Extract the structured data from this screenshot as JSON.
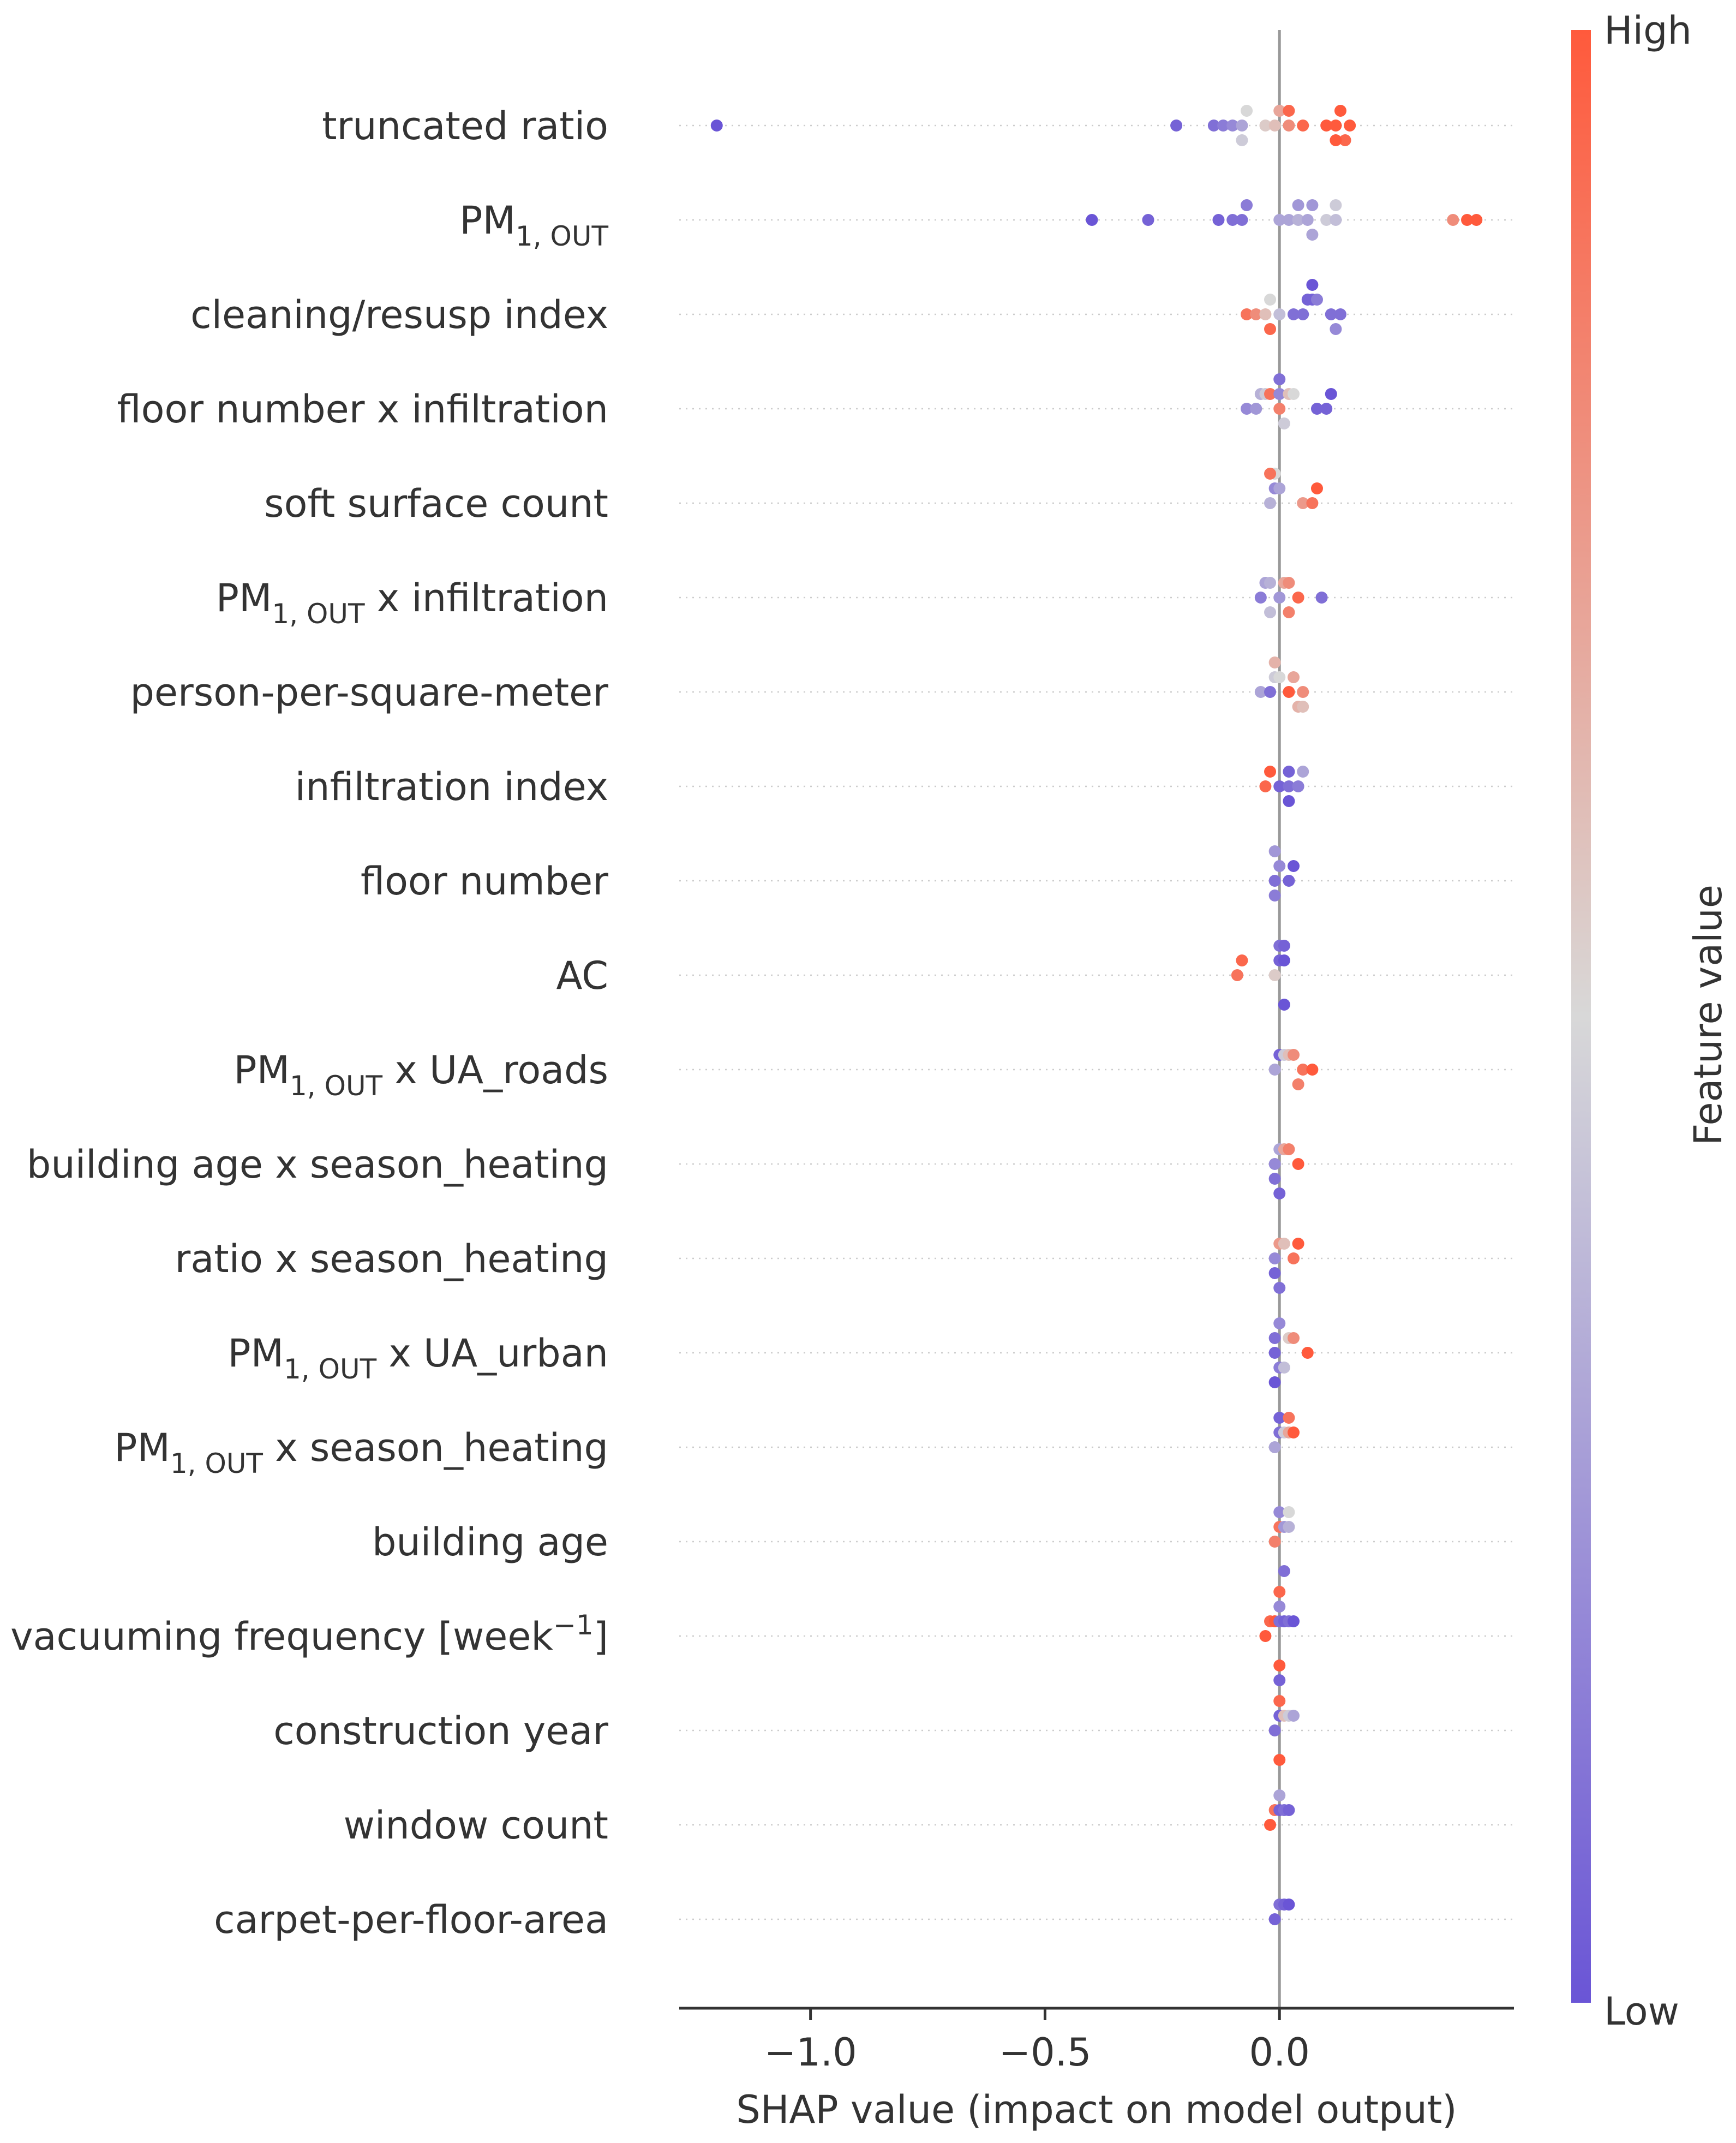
{
  "chart_data": {
    "type": "scatter",
    "subtype": "shap-beeswarm",
    "xlabel": "SHAP value (impact on model output)",
    "xlim": [
      -1.28,
      0.5
    ],
    "x_ticks": [
      -1.0,
      -0.5,
      0.0
    ],
    "x_tick_labels": [
      "−1.0",
      "−0.5",
      "0.0"
    ],
    "grid": "dotted horizontal per feature",
    "colorbar": {
      "label": "Feature value",
      "high_label": "High",
      "low_label": "Low",
      "high_color": "#ff5a3c",
      "mid_color": "#d8d8d8",
      "low_color": "#6a55d6"
    },
    "features": [
      {
        "label": {
          "pre": "truncated ratio"
        },
        "points": [
          {
            "x": -1.2,
            "v": 0.0
          },
          {
            "x": -0.22,
            "v": 0.05
          },
          {
            "x": -0.14,
            "v": 0.1
          },
          {
            "x": -0.12,
            "v": 0.15
          },
          {
            "x": -0.1,
            "v": 0.2
          },
          {
            "x": -0.08,
            "v": 0.3
          },
          {
            "x": -0.07,
            "v": 0.5
          },
          {
            "x": -0.03,
            "v": 0.55
          },
          {
            "x": -0.01,
            "v": 0.6
          },
          {
            "x": 0.0,
            "v": 0.7
          },
          {
            "x": 0.02,
            "v": 0.8
          },
          {
            "x": 0.02,
            "v": 0.95
          },
          {
            "x": 0.05,
            "v": 0.95
          },
          {
            "x": 0.1,
            "v": 1.0
          },
          {
            "x": 0.12,
            "v": 1.0
          },
          {
            "x": 0.13,
            "v": 1.0
          },
          {
            "x": 0.15,
            "v": 1.0
          },
          {
            "x": 0.14,
            "v": 0.95
          },
          {
            "x": 0.12,
            "v": 1.0
          },
          {
            "x": -0.08,
            "v": 0.45
          }
        ]
      },
      {
        "label": {
          "pre": "PM",
          "sub": "1, OUT"
        },
        "points": [
          {
            "x": -0.4,
            "v": 0.0
          },
          {
            "x": -0.28,
            "v": 0.05
          },
          {
            "x": -0.13,
            "v": 0.05
          },
          {
            "x": -0.1,
            "v": 0.1
          },
          {
            "x": -0.08,
            "v": 0.1
          },
          {
            "x": -0.07,
            "v": 0.15
          },
          {
            "x": 0.0,
            "v": 0.3
          },
          {
            "x": 0.02,
            "v": 0.3
          },
          {
            "x": 0.04,
            "v": 0.35
          },
          {
            "x": 0.06,
            "v": 0.3
          },
          {
            "x": 0.07,
            "v": 0.25
          },
          {
            "x": 0.1,
            "v": 0.45
          },
          {
            "x": 0.12,
            "v": 0.4
          },
          {
            "x": 0.04,
            "v": 0.25
          },
          {
            "x": 0.07,
            "v": 0.3
          },
          {
            "x": 0.12,
            "v": 0.45
          },
          {
            "x": 0.37,
            "v": 0.8
          },
          {
            "x": 0.4,
            "v": 1.0
          },
          {
            "x": 0.42,
            "v": 1.0
          }
        ]
      },
      {
        "label": {
          "pre": "cleaning/resusp index"
        },
        "points": [
          {
            "x": -0.07,
            "v": 0.9
          },
          {
            "x": -0.05,
            "v": 0.8
          },
          {
            "x": -0.03,
            "v": 0.6
          },
          {
            "x": -0.02,
            "v": 0.5
          },
          {
            "x": -0.02,
            "v": 0.95
          },
          {
            "x": 0.0,
            "v": 0.4
          },
          {
            "x": 0.03,
            "v": 0.1
          },
          {
            "x": 0.05,
            "v": 0.1
          },
          {
            "x": 0.06,
            "v": 0.05
          },
          {
            "x": 0.07,
            "v": 0.05
          },
          {
            "x": 0.08,
            "v": 0.15
          },
          {
            "x": 0.11,
            "v": 0.1
          },
          {
            "x": 0.13,
            "v": 0.1
          },
          {
            "x": 0.07,
            "v": 0.0
          },
          {
            "x": 0.12,
            "v": 0.2
          }
        ]
      },
      {
        "label": {
          "pre": "floor number x infiltration"
        },
        "points": [
          {
            "x": -0.07,
            "v": 0.2
          },
          {
            "x": -0.05,
            "v": 0.25
          },
          {
            "x": -0.04,
            "v": 0.35
          },
          {
            "x": -0.03,
            "v": 0.45
          },
          {
            "x": -0.02,
            "v": 0.9
          },
          {
            "x": 0.0,
            "v": 0.85
          },
          {
            "x": 0.0,
            "v": 0.2
          },
          {
            "x": 0.01,
            "v": 0.45
          },
          {
            "x": 0.02,
            "v": 0.6
          },
          {
            "x": 0.03,
            "v": 0.5
          },
          {
            "x": 0.08,
            "v": 0.05
          },
          {
            "x": 0.1,
            "v": 0.05
          },
          {
            "x": 0.11,
            "v": 0.0
          },
          {
            "x": 0.0,
            "v": 0.1
          }
        ]
      },
      {
        "label": {
          "pre": "soft surface count"
        },
        "points": [
          {
            "x": -0.02,
            "v": 0.35
          },
          {
            "x": -0.01,
            "v": 0.2
          },
          {
            "x": 0.0,
            "v": 0.3
          },
          {
            "x": 0.05,
            "v": 0.75
          },
          {
            "x": 0.07,
            "v": 0.9
          },
          {
            "x": 0.08,
            "v": 1.0
          },
          {
            "x": -0.01,
            "v": 0.5
          },
          {
            "x": -0.02,
            "v": 0.9
          }
        ]
      },
      {
        "label": {
          "pre": "PM",
          "sub": "1, OUT",
          "post": " x infiltration"
        },
        "points": [
          {
            "x": -0.04,
            "v": 0.15
          },
          {
            "x": -0.03,
            "v": 0.3
          },
          {
            "x": -0.02,
            "v": 0.35
          },
          {
            "x": 0.0,
            "v": 0.25
          },
          {
            "x": 0.01,
            "v": 0.7
          },
          {
            "x": 0.02,
            "v": 0.8
          },
          {
            "x": 0.04,
            "v": 0.95
          },
          {
            "x": 0.09,
            "v": 0.1
          },
          {
            "x": -0.02,
            "v": 0.4
          },
          {
            "x": 0.02,
            "v": 0.85
          }
        ]
      },
      {
        "label": {
          "pre": "person-per-square-meter"
        },
        "points": [
          {
            "x": -0.04,
            "v": 0.3
          },
          {
            "x": -0.02,
            "v": 0.1
          },
          {
            "x": -0.01,
            "v": 0.45
          },
          {
            "x": 0.0,
            "v": 0.5
          },
          {
            "x": 0.02,
            "v": 1.0
          },
          {
            "x": 0.03,
            "v": 0.7
          },
          {
            "x": 0.05,
            "v": 0.8
          },
          {
            "x": 0.04,
            "v": 0.65
          },
          {
            "x": -0.01,
            "v": 0.65
          },
          {
            "x": 0.05,
            "v": 0.6
          }
        ]
      },
      {
        "label": {
          "pre": "infiltration index"
        },
        "points": [
          {
            "x": -0.03,
            "v": 0.95
          },
          {
            "x": -0.02,
            "v": 1.0
          },
          {
            "x": 0.0,
            "v": 0.05
          },
          {
            "x": 0.02,
            "v": 0.1
          },
          {
            "x": 0.02,
            "v": 0.05
          },
          {
            "x": 0.04,
            "v": 0.15
          },
          {
            "x": 0.05,
            "v": 0.3
          },
          {
            "x": 0.02,
            "v": 0.0
          }
        ]
      },
      {
        "label": {
          "pre": "floor number"
        },
        "points": [
          {
            "x": -0.01,
            "v": 0.1
          },
          {
            "x": 0.0,
            "v": 0.2
          },
          {
            "x": 0.02,
            "v": 0.05
          },
          {
            "x": 0.03,
            "v": 0.0
          },
          {
            "x": -0.01,
            "v": 0.15
          },
          {
            "x": -0.01,
            "v": 0.25
          }
        ]
      },
      {
        "label": {
          "pre": "AC"
        },
        "points": [
          {
            "x": -0.09,
            "v": 0.9
          },
          {
            "x": -0.08,
            "v": 0.95
          },
          {
            "x": -0.01,
            "v": 0.55
          },
          {
            "x": 0.0,
            "v": 0.05
          },
          {
            "x": 0.01,
            "v": 0.0
          },
          {
            "x": 0.0,
            "v": 0.1
          },
          {
            "x": 0.01,
            "v": 0.05
          },
          {
            "x": 0.01,
            "v": 0.0
          }
        ]
      },
      {
        "label": {
          "pre": "PM",
          "sub": "1, OUT",
          "post": " x UA_roads"
        },
        "points": [
          {
            "x": -0.01,
            "v": 0.3
          },
          {
            "x": 0.0,
            "v": 0.05
          },
          {
            "x": 0.01,
            "v": 0.45
          },
          {
            "x": 0.02,
            "v": 0.6
          },
          {
            "x": 0.03,
            "v": 0.8
          },
          {
            "x": 0.05,
            "v": 0.9
          },
          {
            "x": 0.07,
            "v": 1.0
          },
          {
            "x": 0.04,
            "v": 0.85
          }
        ]
      },
      {
        "label": {
          "pre": "building age x season_heating"
        },
        "points": [
          {
            "x": -0.01,
            "v": 0.2
          },
          {
            "x": 0.0,
            "v": 0.3
          },
          {
            "x": 0.01,
            "v": 0.7
          },
          {
            "x": 0.02,
            "v": 0.85
          },
          {
            "x": 0.04,
            "v": 1.0
          },
          {
            "x": -0.01,
            "v": 0.1
          },
          {
            "x": 0.0,
            "v": 0.05
          }
        ]
      },
      {
        "label": {
          "pre": "ratio x season_heating"
        },
        "points": [
          {
            "x": -0.01,
            "v": 0.2
          },
          {
            "x": 0.0,
            "v": 0.75
          },
          {
            "x": 0.01,
            "v": 0.6
          },
          {
            "x": 0.03,
            "v": 0.9
          },
          {
            "x": 0.04,
            "v": 1.0
          },
          {
            "x": -0.01,
            "v": 0.05
          },
          {
            "x": 0.0,
            "v": 0.1
          }
        ]
      },
      {
        "label": {
          "pre": "PM",
          "sub": "1, OUT",
          "post": " x UA_urban"
        },
        "points": [
          {
            "x": -0.01,
            "v": 0.05
          },
          {
            "x": -0.01,
            "v": 0.1
          },
          {
            "x": 0.0,
            "v": 0.15
          },
          {
            "x": 0.0,
            "v": 0.2
          },
          {
            "x": 0.01,
            "v": 0.4
          },
          {
            "x": 0.02,
            "v": 0.55
          },
          {
            "x": 0.03,
            "v": 0.8
          },
          {
            "x": 0.06,
            "v": 1.0
          },
          {
            "x": -0.01,
            "v": 0.0
          }
        ]
      },
      {
        "label": {
          "pre": "PM",
          "sub": "1, OUT",
          "post": " x season_heating"
        },
        "points": [
          {
            "x": -0.01,
            "v": 0.3
          },
          {
            "x": 0.0,
            "v": 0.1
          },
          {
            "x": 0.01,
            "v": 0.45
          },
          {
            "x": 0.02,
            "v": 0.7
          },
          {
            "x": 0.03,
            "v": 1.0
          },
          {
            "x": 0.0,
            "v": 0.05
          },
          {
            "x": 0.02,
            "v": 0.9
          }
        ]
      },
      {
        "label": {
          "pre": "building age"
        },
        "points": [
          {
            "x": -0.01,
            "v": 0.85
          },
          {
            "x": 0.0,
            "v": 0.9
          },
          {
            "x": 0.01,
            "v": 0.25
          },
          {
            "x": 0.02,
            "v": 0.35
          },
          {
            "x": 0.0,
            "v": 0.2
          },
          {
            "x": 0.01,
            "v": 0.1
          },
          {
            "x": 0.02,
            "v": 0.5
          }
        ]
      },
      {
        "label": {
          "pre": "vacuuming frequency [week",
          "sup": "−1",
          "post": "]"
        },
        "points": [
          {
            "x": -0.03,
            "v": 1.0
          },
          {
            "x": -0.02,
            "v": 0.95
          },
          {
            "x": -0.01,
            "v": 1.0
          },
          {
            "x": 0.0,
            "v": 0.1
          },
          {
            "x": 0.01,
            "v": 0.05
          },
          {
            "x": 0.02,
            "v": 0.1
          },
          {
            "x": 0.03,
            "v": 0.0
          },
          {
            "x": 0.0,
            "v": 0.2
          },
          {
            "x": 0.0,
            "v": 1.0
          },
          {
            "x": 0.0,
            "v": 0.95
          },
          {
            "x": 0.0,
            "v": 0.05
          }
        ]
      },
      {
        "label": {
          "pre": "construction year"
        },
        "points": [
          {
            "x": -0.01,
            "v": 0.1
          },
          {
            "x": 0.0,
            "v": 0.05
          },
          {
            "x": 0.01,
            "v": 0.6
          },
          {
            "x": 0.02,
            "v": 0.45
          },
          {
            "x": 0.03,
            "v": 0.3
          },
          {
            "x": 0.0,
            "v": 0.95
          },
          {
            "x": 0.0,
            "v": 1.0
          }
        ]
      },
      {
        "label": {
          "pre": "window count"
        },
        "points": [
          {
            "x": -0.02,
            "v": 1.0
          },
          {
            "x": -0.01,
            "v": 0.9
          },
          {
            "x": 0.0,
            "v": 0.05
          },
          {
            "x": 0.01,
            "v": 0.1
          },
          {
            "x": 0.02,
            "v": 0.05
          },
          {
            "x": 0.0,
            "v": 0.3
          }
        ]
      },
      {
        "label": {
          "pre": "carpet-per-floor-area"
        },
        "points": [
          {
            "x": -0.01,
            "v": 0.05
          },
          {
            "x": 0.0,
            "v": 0.1
          },
          {
            "x": 0.01,
            "v": 0.05
          },
          {
            "x": 0.02,
            "v": 0.0
          }
        ]
      }
    ]
  }
}
